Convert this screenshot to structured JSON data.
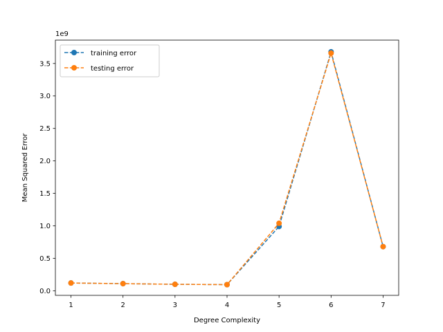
{
  "chart_data": {
    "type": "line",
    "xlabel": "Degree Complexity",
    "ylabel": "Mean Squared Error",
    "scale_label": "1e9",
    "x": [
      1,
      2,
      3,
      4,
      5,
      6,
      7
    ],
    "xticks": [
      "1",
      "2",
      "3",
      "4",
      "5",
      "6",
      "7"
    ],
    "xlim": [
      0.7,
      7.3
    ],
    "yticks": [
      "0.0",
      "0.5",
      "1.0",
      "1.5",
      "2.0",
      "2.5",
      "3.0",
      "3.5"
    ],
    "ylim": [
      -0.07,
      3.86
    ],
    "legend_position": "upper left",
    "series": [
      {
        "name": "training error",
        "color": "#1f77b4",
        "values": [
          0.12,
          0.11,
          0.1,
          0.095,
          0.99,
          3.68,
          0.68
        ]
      },
      {
        "name": "testing error",
        "color": "#ff7f0e",
        "values": [
          0.12,
          0.11,
          0.1,
          0.095,
          1.04,
          3.66,
          0.68
        ]
      }
    ]
  }
}
